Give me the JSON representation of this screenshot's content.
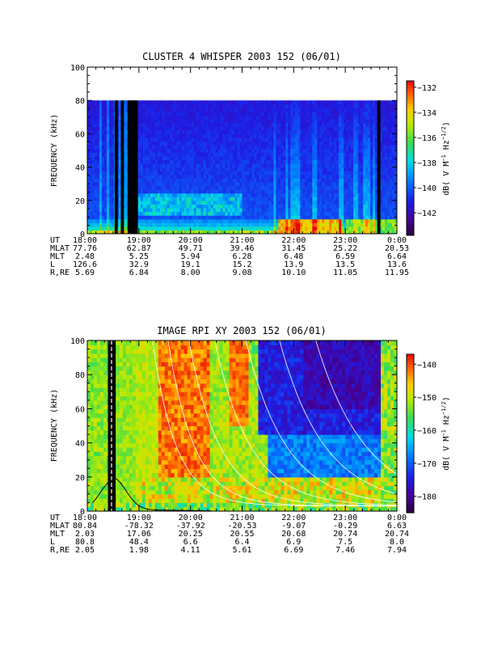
{
  "chart_data": [
    {
      "type": "heatmap",
      "title": "CLUSTER 4 WHISPER 2003 152 (06/01)",
      "ylabel": "FREQUENCY (kHz)",
      "ylim": [
        0,
        100
      ],
      "yticks": [
        "0",
        "20",
        "40",
        "60",
        "80",
        "100"
      ],
      "x_hours": [
        18,
        24
      ],
      "data_ymax": 80,
      "colorbar": {
        "label": "dB( V M^-1 Hz^-1/2 )",
        "range": [
          -143.8,
          -131.5
        ],
        "ticks": [
          "-132",
          "-134",
          "-136",
          "-138",
          "-140",
          "-142"
        ]
      },
      "data_gaps": [
        [
          18.53,
          18.59
        ],
        [
          18.65,
          18.71
        ],
        [
          18.78,
          18.98
        ],
        [
          23.62,
          23.68
        ]
      ],
      "ephemeris": {
        "rows": [
          {
            "name": "UT",
            "values": [
              "18:00",
              "19:00",
              "20:00",
              "21:00",
              "22:00",
              "23:00",
              "0:00"
            ]
          },
          {
            "name": "MLAT",
            "values": [
              "77.76",
              "62.87",
              "49.71",
              "39.46",
              "31.45",
              "25.22",
              "20.53"
            ]
          },
          {
            "name": "MLT",
            "values": [
              "2.48",
              "5.25",
              "5.94",
              "6.28",
              "6.48",
              "6.59",
              "6.64"
            ]
          },
          {
            "name": "L",
            "values": [
              "126.6",
              "32.9",
              "19.1",
              "15.2",
              "13.9",
              "13.5",
              "13.6"
            ]
          },
          {
            "name": "R,RE",
            "values": [
              "5.69",
              "6.84",
              "8.00",
              "9.08",
              "10.10",
              "11.05",
              "11.95"
            ]
          }
        ]
      }
    },
    {
      "type": "heatmap",
      "title": "IMAGE RPI XY 2003 152 (06/01)",
      "ylabel": "FREQUENCY (kHz)",
      "ylim": [
        0,
        100
      ],
      "yticks": [
        "0",
        "20",
        "40",
        "60",
        "80",
        "100"
      ],
      "x_hours": [
        18,
        24
      ],
      "data_ymax": 100,
      "colorbar": {
        "label": "dB( V M^-1 Hz^-1/2 )",
        "range": [
          -185,
          -137
        ],
        "ticks": [
          "-140",
          "-150",
          "-160",
          "-170",
          "-180"
        ]
      },
      "data_gaps": [
        [
          18.4,
          18.55
        ]
      ],
      "ephemeris": {
        "rows": [
          {
            "name": "UT",
            "values": [
              "18:00",
              "19:00",
              "20:00",
              "21:00",
              "22:00",
              "23:00",
              "0:00"
            ]
          },
          {
            "name": "MLAT",
            "values": [
              "80.84",
              "-78.32",
              "-37.92",
              "-20.53",
              "-9.07",
              "-0.29",
              "6.63"
            ]
          },
          {
            "name": "MLT",
            "values": [
              "2.03",
              "17.06",
              "20.25",
              "20.55",
              "20.68",
              "20.74",
              "20.74"
            ]
          },
          {
            "name": "L",
            "values": [
              "80.8",
              "48.4",
              "6.6",
              "6.4",
              "6.9",
              "7.5",
              "8.0"
            ]
          },
          {
            "name": "R,RE",
            "values": [
              "2.05",
              "1.98",
              "4.11",
              "5.61",
              "6.69",
              "7.46",
              "7.94"
            ]
          }
        ]
      }
    }
  ]
}
